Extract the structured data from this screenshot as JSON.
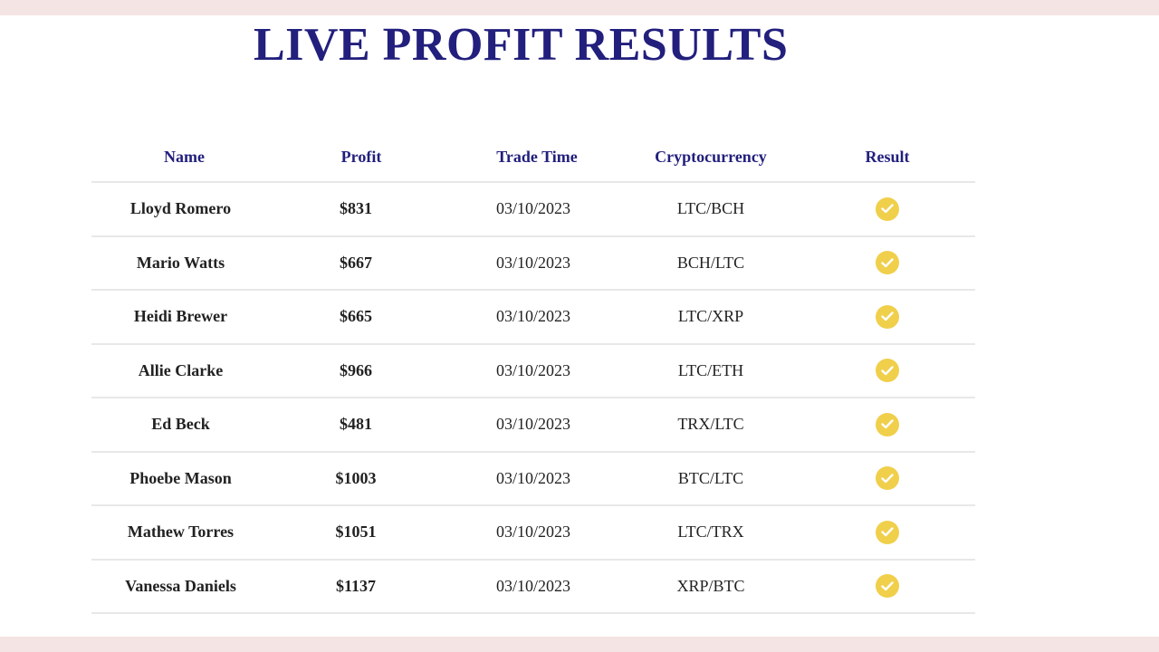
{
  "title": "LIVE PROFIT RESULTS",
  "colors": {
    "title": "#221f7d",
    "header": "#221f7d",
    "check": "#f0cf4b",
    "frame": "#f5e4e4"
  },
  "table": {
    "columns": [
      "Name",
      "Profit",
      "Trade Time",
      "Cryptocurrency",
      "Result"
    ],
    "rows": [
      {
        "name": "Lloyd Romero",
        "profit": "$831",
        "time": "03/10/2023",
        "crypto": "LTC/BCH",
        "result_icon": "check-circle-icon"
      },
      {
        "name": "Mario Watts",
        "profit": "$667",
        "time": "03/10/2023",
        "crypto": "BCH/LTC",
        "result_icon": "check-circle-icon"
      },
      {
        "name": "Heidi Brewer",
        "profit": "$665",
        "time": "03/10/2023",
        "crypto": "LTC/XRP",
        "result_icon": "check-circle-icon"
      },
      {
        "name": "Allie Clarke",
        "profit": "$966",
        "time": "03/10/2023",
        "crypto": "LTC/ETH",
        "result_icon": "check-circle-icon"
      },
      {
        "name": "Ed Beck",
        "profit": "$481",
        "time": "03/10/2023",
        "crypto": "TRX/LTC",
        "result_icon": "check-circle-icon"
      },
      {
        "name": "Phoebe Mason",
        "profit": "$1003",
        "time": "03/10/2023",
        "crypto": "BTC/LTC",
        "result_icon": "check-circle-icon"
      },
      {
        "name": "Mathew Torres",
        "profit": "$1051",
        "time": "03/10/2023",
        "crypto": "LTC/TRX",
        "result_icon": "check-circle-icon"
      },
      {
        "name": "Vanessa Daniels",
        "profit": "$1137",
        "time": "03/10/2023",
        "crypto": "XRP/BTC",
        "result_icon": "check-circle-icon"
      }
    ]
  }
}
